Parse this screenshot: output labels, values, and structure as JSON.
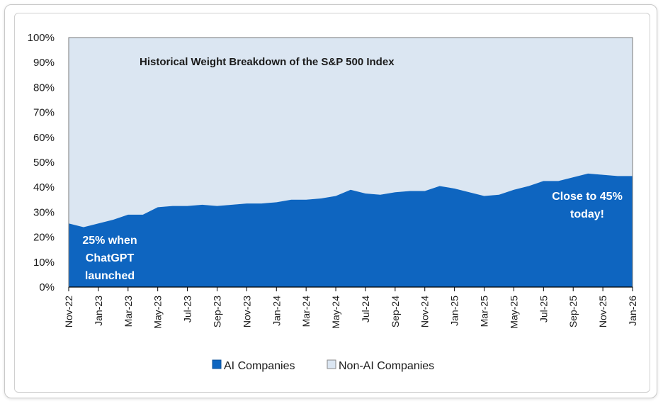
{
  "chart_data": {
    "type": "area",
    "title": "Historical Weight Breakdown of the S&P 500 Index",
    "xlabel": "",
    "ylabel": "",
    "ylim": [
      0,
      100
    ],
    "y_ticks": [
      "0%",
      "10%",
      "20%",
      "30%",
      "40%",
      "50%",
      "60%",
      "70%",
      "80%",
      "90%",
      "100%"
    ],
    "x_tick_labels": [
      "Nov-22",
      "Jan-23",
      "Mar-23",
      "May-23",
      "Jul-23",
      "Sep-23",
      "Nov-23",
      "Jan-24",
      "Mar-24",
      "May-24",
      "Jul-24",
      "Sep-24",
      "Nov-24",
      "Jan-25",
      "Mar-25",
      "May-25",
      "Jul-25",
      "Sep-25",
      "Nov-25",
      "Jan-26"
    ],
    "stacked": true,
    "series": [
      {
        "name": "AI Companies",
        "color": "#0e65c0",
        "values": [
          25.5,
          24,
          25.5,
          27,
          29,
          29,
          32,
          32.5,
          32.5,
          33,
          32.5,
          33,
          33.5,
          33.5,
          34,
          35,
          35,
          35.5,
          36.5,
          39,
          37.5,
          37,
          38,
          38.5,
          38.5,
          40.5,
          39.5,
          38,
          36.5,
          37,
          39,
          40.5,
          42.5,
          42.5,
          44,
          45.5,
          45,
          44.5,
          44.5
        ]
      },
      {
        "name": "Non-AI Companies",
        "color": "#dbe6f2",
        "values": [
          74.5,
          76,
          74.5,
          73,
          71,
          71,
          68,
          67.5,
          67.5,
          67,
          67.5,
          67,
          66.5,
          66.5,
          66,
          65,
          65,
          64.5,
          63.5,
          61,
          62.5,
          63,
          62,
          61.5,
          61.5,
          59.5,
          60.5,
          62,
          63.5,
          63,
          61,
          59.5,
          57.5,
          57.5,
          56,
          54.5,
          55,
          55.5,
          55.5
        ]
      }
    ],
    "annotations": [
      {
        "lines": [
          "25% when",
          "ChatGPT",
          "launched"
        ],
        "anchor": "left-bottom"
      },
      {
        "lines": [
          "Close to 45%",
          "today!"
        ],
        "anchor": "right"
      }
    ],
    "legend": {
      "placement": "bottom-center"
    }
  }
}
